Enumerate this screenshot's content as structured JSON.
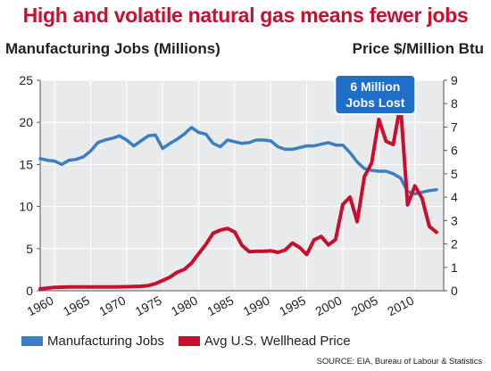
{
  "title": "High and volatile natural gas means fewer jobs",
  "left_axis_title": "Manufacturing Jobs (Millions)",
  "right_axis_title": "Price $/Million Btu",
  "source": "SOURCE:  EIA, Bureau of Labour & Statistics",
  "colors": {
    "jobs": "#3a7fc1",
    "price": "#c8102e",
    "plot_bg": "#e8eaec",
    "callout": "#1f6fc8"
  },
  "chart_data": {
    "type": "line",
    "title": "High and volatile natural gas means fewer jobs",
    "xlabel": "",
    "ylabel": "Manufacturing Jobs (Millions)",
    "y2label": "Price $/Million Btu",
    "xlim": [
      1958,
      2014
    ],
    "ylim": [
      0,
      25
    ],
    "y2lim": [
      0,
      9
    ],
    "x_ticks": [
      "1960",
      "1965",
      "1970",
      "1975",
      "1980",
      "1985",
      "1990",
      "1995",
      "2000",
      "2005",
      "2010"
    ],
    "x_tick_values": [
      1960,
      1965,
      1970,
      1975,
      1980,
      1985,
      1990,
      1995,
      2000,
      2005,
      2010
    ],
    "y_ticks": [
      "0",
      "5",
      "10",
      "15",
      "20",
      "25"
    ],
    "y2_ticks": [
      "0",
      "1",
      "2",
      "3",
      "4",
      "5",
      "6",
      "7",
      "8",
      "9"
    ],
    "grid": true,
    "legend_position": "bottom",
    "annotation": {
      "lines": [
        "6 Million",
        "Jobs Lost"
      ],
      "x": 2004.5,
      "y": 23.3
    },
    "series": [
      {
        "name": "Manufacturing Jobs",
        "axis": "left",
        "color": "#3a7fc1",
        "points": [
          [
            1958,
            15.7
          ],
          [
            1959,
            15.5
          ],
          [
            1960,
            15.4
          ],
          [
            1961,
            15.0
          ],
          [
            1962,
            15.5
          ],
          [
            1963,
            15.6
          ],
          [
            1964,
            15.9
          ],
          [
            1965,
            16.6
          ],
          [
            1966,
            17.6
          ],
          [
            1967,
            17.9
          ],
          [
            1968,
            18.1
          ],
          [
            1969,
            18.4
          ],
          [
            1970,
            17.9
          ],
          [
            1971,
            17.2
          ],
          [
            1972,
            17.8
          ],
          [
            1973,
            18.4
          ],
          [
            1974,
            18.5
          ],
          [
            1975,
            16.9
          ],
          [
            1976,
            17.5
          ],
          [
            1977,
            18.0
          ],
          [
            1978,
            18.6
          ],
          [
            1979,
            19.4
          ],
          [
            1980,
            18.8
          ],
          [
            1981,
            18.6
          ],
          [
            1982,
            17.5
          ],
          [
            1983,
            17.1
          ],
          [
            1984,
            17.9
          ],
          [
            1985,
            17.7
          ],
          [
            1986,
            17.5
          ],
          [
            1987,
            17.6
          ],
          [
            1988,
            17.9
          ],
          [
            1989,
            17.9
          ],
          [
            1990,
            17.8
          ],
          [
            1991,
            17.1
          ],
          [
            1992,
            16.8
          ],
          [
            1993,
            16.8
          ],
          [
            1994,
            17.0
          ],
          [
            1995,
            17.2
          ],
          [
            1996,
            17.2
          ],
          [
            1997,
            17.4
          ],
          [
            1998,
            17.6
          ],
          [
            1999,
            17.3
          ],
          [
            2000,
            17.3
          ],
          [
            2001,
            16.4
          ],
          [
            2002,
            15.3
          ],
          [
            2003,
            14.5
          ],
          [
            2004,
            14.3
          ],
          [
            2005,
            14.2
          ],
          [
            2006,
            14.2
          ],
          [
            2007,
            13.9
          ],
          [
            2008,
            13.4
          ],
          [
            2009,
            11.8
          ],
          [
            2010,
            11.5
          ],
          [
            2011,
            11.7
          ],
          [
            2012,
            11.9
          ],
          [
            2013,
            12.0
          ]
        ]
      },
      {
        "name": "Avg U.S. Wellhead Price",
        "axis": "right",
        "color": "#c8102e",
        "points": [
          [
            1958,
            0.08
          ],
          [
            1960,
            0.14
          ],
          [
            1962,
            0.16
          ],
          [
            1964,
            0.16
          ],
          [
            1966,
            0.16
          ],
          [
            1968,
            0.16
          ],
          [
            1970,
            0.17
          ],
          [
            1971,
            0.18
          ],
          [
            1972,
            0.19
          ],
          [
            1973,
            0.22
          ],
          [
            1974,
            0.3
          ],
          [
            1975,
            0.44
          ],
          [
            1976,
            0.58
          ],
          [
            1977,
            0.79
          ],
          [
            1978,
            0.91
          ],
          [
            1979,
            1.18
          ],
          [
            1980,
            1.59
          ],
          [
            1981,
            1.98
          ],
          [
            1982,
            2.46
          ],
          [
            1983,
            2.59
          ],
          [
            1984,
            2.66
          ],
          [
            1985,
            2.51
          ],
          [
            1986,
            1.94
          ],
          [
            1987,
            1.67
          ],
          [
            1988,
            1.69
          ],
          [
            1989,
            1.69
          ],
          [
            1990,
            1.71
          ],
          [
            1991,
            1.64
          ],
          [
            1992,
            1.74
          ],
          [
            1993,
            2.04
          ],
          [
            1994,
            1.85
          ],
          [
            1995,
            1.55
          ],
          [
            1996,
            2.17
          ],
          [
            1997,
            2.32
          ],
          [
            1998,
            1.96
          ],
          [
            1999,
            2.19
          ],
          [
            2000,
            3.69
          ],
          [
            2001,
            4.0
          ],
          [
            2002,
            2.95
          ],
          [
            2003,
            4.88
          ],
          [
            2004,
            5.46
          ],
          [
            2005,
            7.33
          ],
          [
            2006,
            6.39
          ],
          [
            2007,
            6.25
          ],
          [
            2008,
            7.97
          ],
          [
            2009,
            3.67
          ],
          [
            2010,
            4.48
          ],
          [
            2011,
            3.95
          ],
          [
            2012,
            2.75
          ],
          [
            2013,
            2.5
          ]
        ]
      }
    ]
  }
}
